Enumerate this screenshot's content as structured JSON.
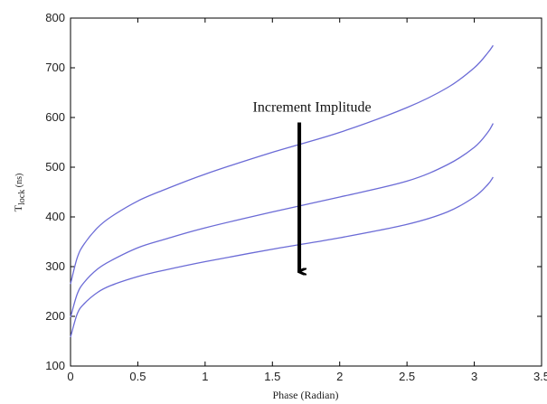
{
  "chart_data": {
    "type": "line",
    "title": "",
    "xlabel": "Phase (Radian)",
    "ylabel_main": "T",
    "ylabel_sub": "lock",
    "ylabel_unit": " (ns)",
    "xlim": [
      0,
      3.5
    ],
    "ylim": [
      100,
      800
    ],
    "xticks": [
      "0",
      "0.5",
      "1",
      "1.5",
      "2",
      "2.5",
      "3",
      "3.5"
    ],
    "yticks": [
      "100",
      "200",
      "300",
      "400",
      "500",
      "600",
      "700",
      "800"
    ],
    "grid": false,
    "series": [
      {
        "x": [
          0,
          0.05,
          0.1,
          0.2,
          0.3,
          0.5,
          0.7,
          1.0,
          1.5,
          2.0,
          2.5,
          2.8,
          3.0,
          3.1,
          3.14
        ],
        "values": [
          265,
          318,
          345,
          378,
          400,
          432,
          455,
          486,
          530,
          570,
          620,
          660,
          700,
          730,
          745
        ]
      },
      {
        "x": [
          0,
          0.05,
          0.1,
          0.2,
          0.3,
          0.5,
          0.7,
          1.0,
          1.5,
          2.0,
          2.5,
          2.8,
          3.0,
          3.1,
          3.14
        ],
        "values": [
          198,
          245,
          268,
          295,
          312,
          338,
          355,
          378,
          410,
          440,
          472,
          505,
          540,
          570,
          588
        ]
      },
      {
        "x": [
          0,
          0.05,
          0.1,
          0.2,
          0.3,
          0.5,
          0.7,
          1.0,
          1.5,
          2.0,
          2.5,
          2.8,
          3.0,
          3.1,
          3.14
        ],
        "values": [
          158,
          205,
          225,
          248,
          262,
          280,
          293,
          310,
          335,
          358,
          385,
          410,
          440,
          465,
          480
        ]
      }
    ],
    "annotation": {
      "text": "Increment Implitude",
      "arrow_x": 1.7,
      "arrow_from_y": 590,
      "arrow_to_y": 290
    },
    "line_color": "#6b6bd6"
  }
}
